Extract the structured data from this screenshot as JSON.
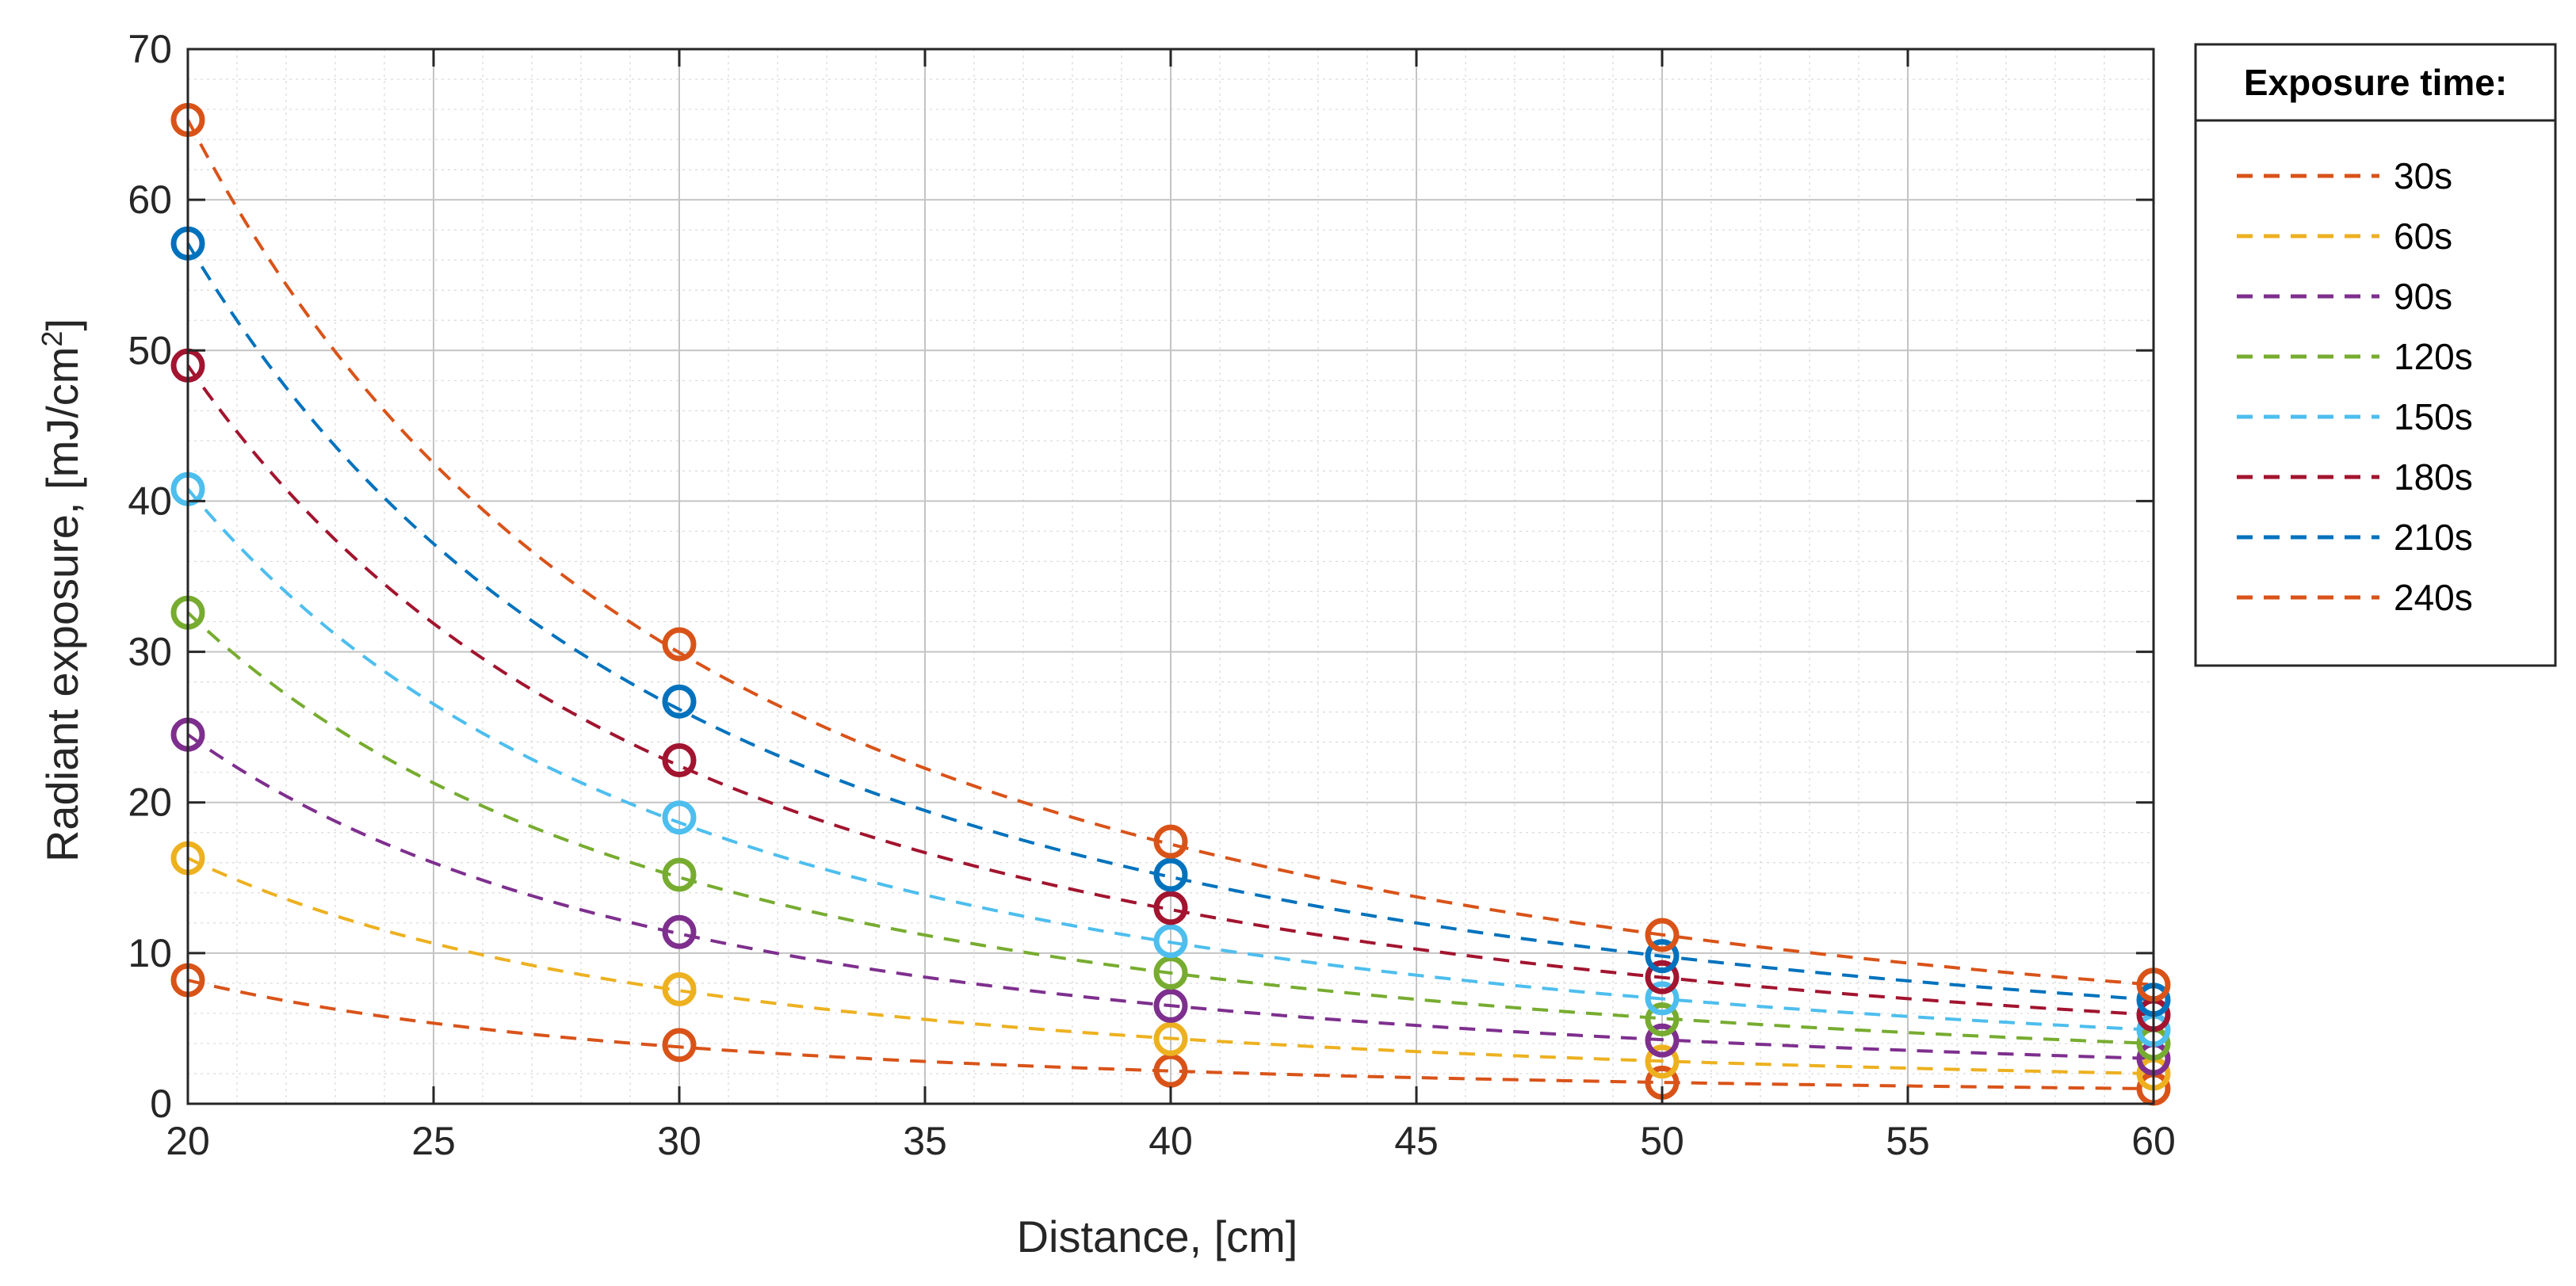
{
  "chart_data": {
    "type": "line",
    "title": "",
    "xlabel": "Distance, [cm]",
    "ylabel_main": "Radiant exposure, [mJ/cm",
    "ylabel_sup": "2",
    "ylabel_close": "]",
    "xlim": [
      20,
      60
    ],
    "ylim": [
      0,
      70
    ],
    "xticks": [
      "20",
      "25",
      "30",
      "35",
      "40",
      "45",
      "50",
      "55",
      "60"
    ],
    "yticks": [
      "0",
      "10",
      "20",
      "30",
      "40",
      "50",
      "60",
      "70"
    ],
    "grid": "major and minor",
    "legend_title": "Exposure time:",
    "legend_position": "outside right, top",
    "marker_color": "#0072BD",
    "x_measured": [
      20,
      30,
      40,
      50,
      60
    ],
    "series": [
      {
        "name": "30s",
        "color": "#D95319",
        "values": [
          8.2,
          3.9,
          2.2,
          1.4,
          1.0
        ]
      },
      {
        "name": "60s",
        "color": "#EDB120",
        "values": [
          16.3,
          7.6,
          4.3,
          2.8,
          2.0
        ]
      },
      {
        "name": "90s",
        "color": "#7E2F8E",
        "values": [
          24.5,
          11.4,
          6.5,
          4.2,
          3.0
        ]
      },
      {
        "name": "120s",
        "color": "#77AC30",
        "values": [
          32.6,
          15.2,
          8.7,
          5.6,
          4.0
        ]
      },
      {
        "name": "150s",
        "color": "#4DBEEE",
        "values": [
          40.8,
          19.0,
          10.8,
          7.0,
          4.9
        ]
      },
      {
        "name": "180s",
        "color": "#A2142F",
        "values": [
          49.0,
          22.8,
          13.0,
          8.4,
          5.9
        ]
      },
      {
        "name": "210s",
        "color": "#0072BD",
        "values": [
          57.1,
          26.7,
          15.2,
          9.8,
          6.9
        ]
      },
      {
        "name": "240s",
        "color": "#D95319",
        "values": [
          65.3,
          30.5,
          17.4,
          11.2,
          7.9
        ]
      }
    ]
  }
}
